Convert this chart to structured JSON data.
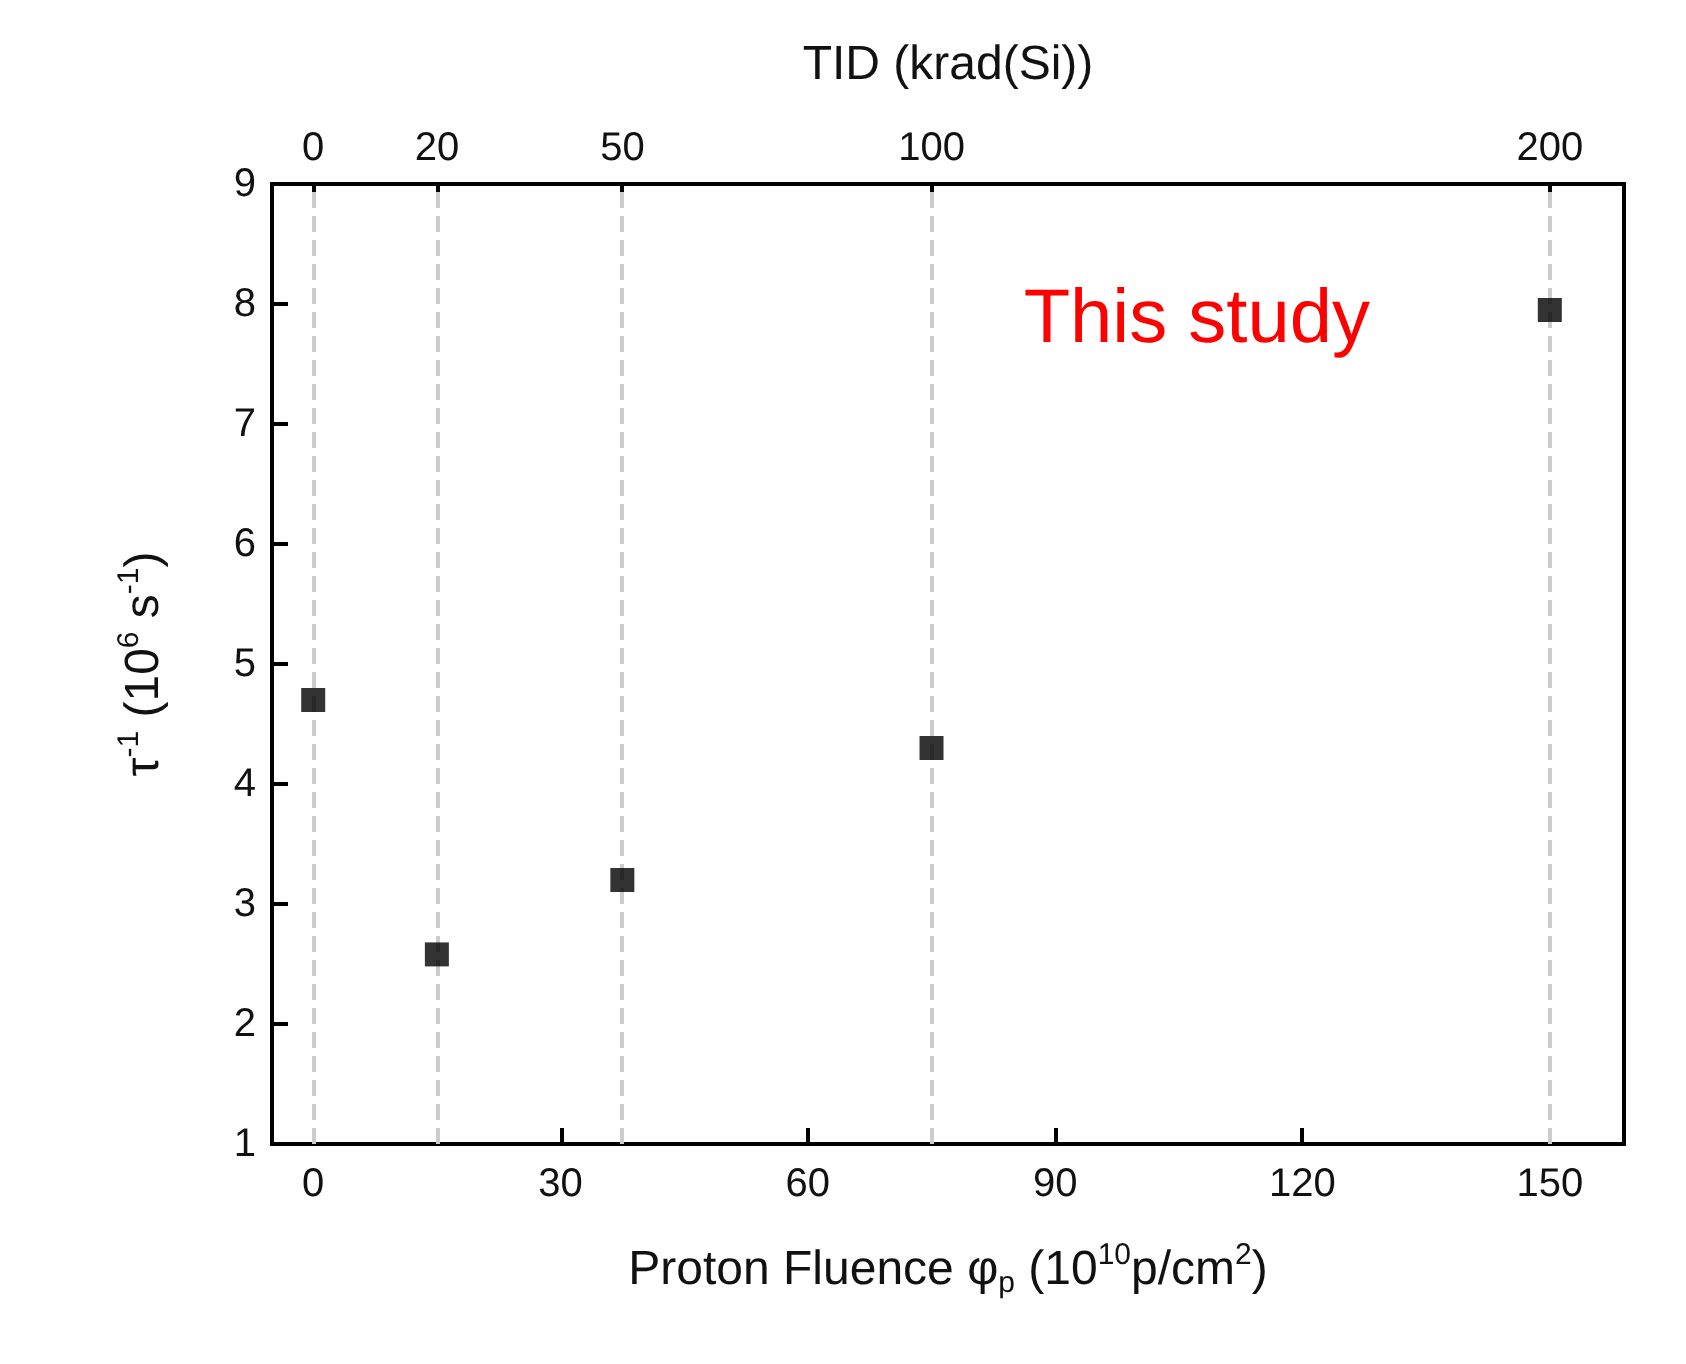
{
  "chart_data": {
    "type": "scatter",
    "x": [
      0,
      15,
      37.5,
      75,
      150
    ],
    "values": [
      4.7,
      2.58,
      3.2,
      4.3,
      7.95
    ],
    "color": "#000000",
    "marker": "square",
    "xlabel": "Proton Fluence φ$_{p}$ (10$^{10}$p/cm$^{2}$)",
    "ylabel": "τ$^{-1}$ (10$^{6}$ s$^{-1}$)",
    "x2label": "TID (krad(Si))",
    "xlim": [
      -5,
      159
    ],
    "xticks": [
      0,
      30,
      60,
      90,
      120,
      150
    ],
    "x2lim": [
      -6.67,
      212
    ],
    "x2ticks": [
      0,
      20,
      50,
      100,
      200
    ],
    "ylim": [
      1,
      9
    ],
    "yticks": [
      1,
      2,
      3,
      4,
      5,
      6,
      7,
      8,
      9
    ],
    "ref_lines": [
      {
        "axis": "x",
        "value": 0,
        "color": "#cccccc",
        "line_style": "dashed"
      },
      {
        "axis": "x",
        "value": 15,
        "color": "#cccccc",
        "line_style": "dashed"
      },
      {
        "axis": "x",
        "value": 37.5,
        "color": "#cccccc",
        "line_style": "dashed"
      },
      {
        "axis": "x",
        "value": 75,
        "color": "#cccccc",
        "line_style": "dashed"
      },
      {
        "axis": "x",
        "value": 150,
        "color": "#cccccc",
        "line_style": "dashed"
      }
    ],
    "annotations": [
      "This study"
    ],
    "grid": false
  }
}
